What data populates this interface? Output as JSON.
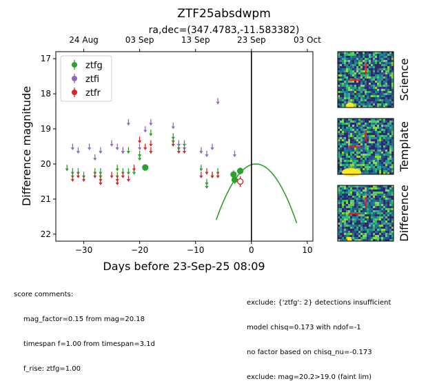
{
  "chart_data": {
    "type": "scatter",
    "title": "ZTF25absdwpm",
    "subtitle": "ra,dec=(347.4783,-11.583382)",
    "xlabel": "Days before 23-Sep-25 08:09",
    "ylabel": "Difference magnitude",
    "xlim": [
      -35,
      11
    ],
    "ylim": [
      22.2,
      16.8
    ],
    "y_inverted": true,
    "x_ticks": [
      -30,
      -20,
      -10,
      0,
      10
    ],
    "y_ticks": [
      17,
      18,
      19,
      20,
      21,
      22
    ],
    "top_axis_ticks": [
      {
        "label": "24 Aug",
        "x": -30
      },
      {
        "label": "03 Sep",
        "x": -20
      },
      {
        "label": "13 Sep",
        "x": -10
      },
      {
        "label": "23 Sep",
        "x": 0
      },
      {
        "label": "03 Oct",
        "x": 10
      }
    ],
    "vertical_line_x": 0,
    "legend_position": "upper-left",
    "series": [
      {
        "name": "ztfg",
        "color": "#2ca02c",
        "upper_limits": [
          {
            "x": -33,
            "y": 20.1
          },
          {
            "x": -32,
            "y": 20.2
          },
          {
            "x": -32,
            "y": 20.3
          },
          {
            "x": -31,
            "y": 20.2
          },
          {
            "x": -30,
            "y": 20.3
          },
          {
            "x": -28,
            "y": 20.2
          },
          {
            "x": -27,
            "y": 20.2
          },
          {
            "x": -27,
            "y": 20.3
          },
          {
            "x": -24,
            "y": 20.1
          },
          {
            "x": -24,
            "y": 20.3
          },
          {
            "x": -23,
            "y": 19.6
          },
          {
            "x": -23,
            "y": 20.2
          },
          {
            "x": -22,
            "y": 19.6
          },
          {
            "x": -22,
            "y": 20.2
          },
          {
            "x": -21,
            "y": 20.2
          },
          {
            "x": -20,
            "y": 19.7
          },
          {
            "x": -20,
            "y": 19.8
          },
          {
            "x": -18,
            "y": 19.1
          },
          {
            "x": -14,
            "y": 19.2
          },
          {
            "x": -14,
            "y": 19.3
          },
          {
            "x": -13,
            "y": 19.5
          },
          {
            "x": -12,
            "y": 19.4
          },
          {
            "x": -9,
            "y": 20.1
          },
          {
            "x": -8,
            "y": 20.5
          },
          {
            "x": -8,
            "y": 20.6
          },
          {
            "x": -7,
            "y": 20.3
          },
          {
            "x": -6,
            "y": 20.2
          }
        ],
        "detections": [
          {
            "x": -19,
            "y": 20.1,
            "err": 0.08
          },
          {
            "x": -3.2,
            "y": 20.3,
            "err": 0.12
          },
          {
            "x": -3,
            "y": 20.45,
            "err": 0.12
          },
          {
            "x": -2,
            "y": 20.2,
            "err": 0.1
          }
        ],
        "fit_curve": {
          "peak_x": 0.8,
          "peak_y": 20.0,
          "curvature": 0.0316,
          "x_range": [
            -6.3,
            8.1
          ]
        }
      },
      {
        "name": "ztfi",
        "color": "#9467bd",
        "upper_limits": [
          {
            "x": -32,
            "y": 19.5
          },
          {
            "x": -31,
            "y": 19.6
          },
          {
            "x": -29,
            "y": 19.5
          },
          {
            "x": -28,
            "y": 19.8
          },
          {
            "x": -27,
            "y": 19.6
          },
          {
            "x": -25,
            "y": 19.4
          },
          {
            "x": -24,
            "y": 19.5
          },
          {
            "x": -23,
            "y": 19.6
          },
          {
            "x": -22,
            "y": 18.8
          },
          {
            "x": -20,
            "y": 19.5
          },
          {
            "x": -19,
            "y": 19.0
          },
          {
            "x": -18,
            "y": 18.8
          },
          {
            "x": -14,
            "y": 18.9
          },
          {
            "x": -13,
            "y": 19.4
          },
          {
            "x": -12,
            "y": 19.5
          },
          {
            "x": -9,
            "y": 19.6
          },
          {
            "x": -8,
            "y": 19.7
          },
          {
            "x": -7,
            "y": 19.5
          },
          {
            "x": -6,
            "y": 18.2
          },
          {
            "x": -3,
            "y": 19.7
          }
        ]
      },
      {
        "name": "ztfr",
        "color": "#d62728",
        "upper_limits": [
          {
            "x": -32,
            "y": 20.4
          },
          {
            "x": -31,
            "y": 20.3
          },
          {
            "x": -30,
            "y": 20.4
          },
          {
            "x": -28,
            "y": 20.3
          },
          {
            "x": -27,
            "y": 20.4
          },
          {
            "x": -27,
            "y": 20.5
          },
          {
            "x": -25,
            "y": 20.3
          },
          {
            "x": -24,
            "y": 20.4
          },
          {
            "x": -24,
            "y": 20.5
          },
          {
            "x": -23,
            "y": 20.3
          },
          {
            "x": -22,
            "y": 20.4
          },
          {
            "x": -21,
            "y": 20.1
          },
          {
            "x": -20,
            "y": 19.3
          },
          {
            "x": -19,
            "y": 19.5
          },
          {
            "x": -18,
            "y": 19.4
          },
          {
            "x": -18,
            "y": 19.6
          },
          {
            "x": -14,
            "y": 19.4
          },
          {
            "x": -13,
            "y": 19.6
          },
          {
            "x": -12,
            "y": 19.6
          },
          {
            "x": -9,
            "y": 20.3
          },
          {
            "x": -8,
            "y": 20.2
          },
          {
            "x": -7,
            "y": 20.3
          },
          {
            "x": -6,
            "y": 20.3
          }
        ],
        "detections": [
          {
            "x": -2,
            "y": 20.5,
            "err": 0.15,
            "hollow": true
          }
        ]
      }
    ]
  },
  "stamps": [
    {
      "label": "Science"
    },
    {
      "label": "Template"
    },
    {
      "label": "Difference"
    }
  ],
  "comments_left": {
    "heading": "score comments:",
    "lines": [
      "mag_factor=0.15 from mag=20.18",
      "timespan f=1.00 from timespan=3.1d",
      "f_rise: ztfg=1.00"
    ]
  },
  "comments_right": {
    "lines": [
      "exclude: {'ztfg': 2} detections insufficient",
      "model chisq=0.173 with ndof=-1",
      "no factor based on chisq_nu=-0.173",
      "exclude: mag=20.2>19.0 (faint lim)"
    ]
  }
}
